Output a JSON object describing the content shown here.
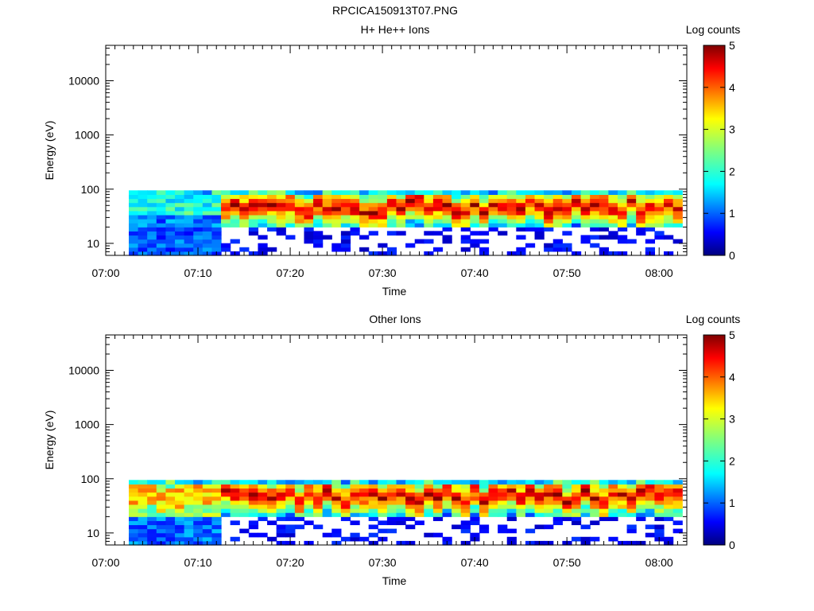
{
  "figure_title": "RPCICA150913T07.PNG",
  "chart_data": [
    {
      "type": "heatmap",
      "title": "H+ He++ Ions",
      "xlabel": "Time",
      "ylabel": "Energy (eV)",
      "x_ticks": [
        "07:00",
        "07:10",
        "07:20",
        "07:30",
        "07:40",
        "07:50",
        "08:00"
      ],
      "x_range_minutes": [
        0,
        63
      ],
      "y_scale": "log",
      "y_ticks": [
        "10",
        "100",
        "1000",
        "10000"
      ],
      "y_range": [
        6,
        45000
      ],
      "data_time_range_minutes": [
        2.5,
        62.5
      ],
      "data_energy_range": [
        6,
        95
      ],
      "colorbar": {
        "label": "Log counts",
        "ticks": [
          "0",
          "1",
          "2",
          "3",
          "4",
          "5"
        ],
        "range": [
          0,
          5
        ]
      },
      "description": "Low-energy band below ~95 eV; weak (log ~1) counts before 07:12, then intense 3-5 log counts in 30-90 eV band with sparse low counts below 20 eV"
    },
    {
      "type": "heatmap",
      "title": "Other Ions",
      "xlabel": "Time",
      "ylabel": "Energy (eV)",
      "x_ticks": [
        "07:00",
        "07:10",
        "07:20",
        "07:30",
        "07:40",
        "07:50",
        "08:00"
      ],
      "x_range_minutes": [
        0,
        63
      ],
      "y_scale": "log",
      "y_ticks": [
        "10",
        "100",
        "1000",
        "10000"
      ],
      "y_range": [
        6,
        45000
      ],
      "data_time_range_minutes": [
        2.5,
        62.5
      ],
      "data_energy_range": [
        6,
        95
      ],
      "colorbar": {
        "label": "Log counts",
        "ticks": [
          "0",
          "1",
          "2",
          "3",
          "4",
          "5"
        ],
        "range": [
          0,
          5
        ]
      },
      "description": "Similar band structure to H+ panel with stronger counts from 07:02 onward, peak log counts ~5 in 35-80 eV"
    }
  ]
}
